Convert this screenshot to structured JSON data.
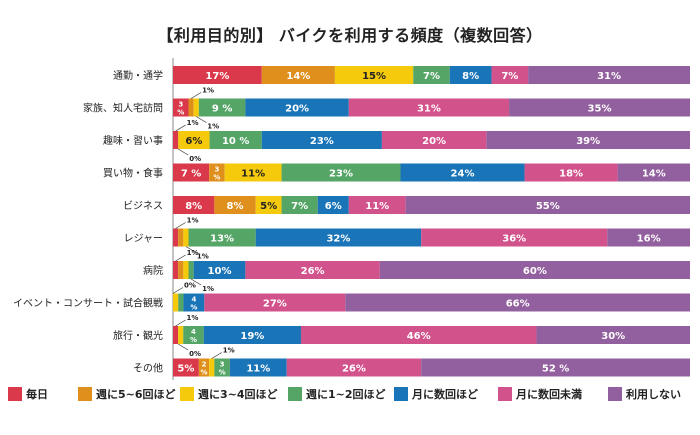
{
  "chart_data": {
    "type": "bar",
    "orientation": "horizontal",
    "stacked": true,
    "title": "【利用目的別】 バイクを利用する頻度（複数回答）",
    "categories": [
      "通勤・通学",
      "家族、知人宅訪問",
      "趣味・習い事",
      "買い物・食事",
      "ビジネス",
      "レジャー",
      "病院",
      "イベント・コンサート・試合観戦",
      "旅行・観光",
      "その他"
    ],
    "series": [
      {
        "name": "毎日",
        "color": "#d9394a",
        "values": [
          17,
          3,
          1,
          7,
          8,
          1,
          1,
          0,
          1,
          5
        ],
        "labels": [
          "17%",
          "3%",
          "1%",
          "7 %",
          "8%",
          "1%",
          "1%",
          "0%",
          "1%",
          "5%"
        ]
      },
      {
        "name": "週に5~6回ほど",
        "color": "#df8f1c",
        "values": [
          14,
          1,
          0,
          3,
          8,
          1,
          1,
          0,
          0,
          2
        ],
        "labels": [
          "14%",
          "1%",
          "0%",
          "3%",
          "8%",
          "",
          "",
          "",
          "0%",
          "2%"
        ]
      },
      {
        "name": "週に3~4回ほど",
        "color": "#f5c90c",
        "values": [
          15,
          1,
          6,
          11,
          5,
          1,
          1,
          1,
          1,
          1
        ],
        "labels": [
          "15%",
          "1%",
          "6%",
          "11%",
          "5%",
          "1%",
          "",
          "",
          "",
          "1%"
        ]
      },
      {
        "name": "週に1~2回ほど",
        "color": "#55a566",
        "values": [
          7,
          9,
          10,
          23,
          7,
          13,
          1,
          1,
          4,
          3
        ],
        "labels": [
          "7%",
          "9 %",
          "10 %",
          "23%",
          "7%",
          "13%",
          "1%",
          "",
          "4%",
          "3%"
        ]
      },
      {
        "name": "月に数回ほど",
        "color": "#1a74b8",
        "values": [
          8,
          20,
          23,
          24,
          6,
          32,
          10,
          4,
          19,
          11
        ],
        "labels": [
          "8%",
          "20%",
          "23%",
          "24%",
          "6%",
          "32%",
          "10%",
          "4%",
          "19%",
          "11%"
        ]
      },
      {
        "name": "月に数回未満",
        "color": "#d2528c",
        "values": [
          7,
          31,
          20,
          18,
          11,
          36,
          26,
          27,
          46,
          26
        ],
        "labels": [
          "7%",
          "31%",
          "20%",
          "18%",
          "11%",
          "36%",
          "26%",
          "27%",
          "46%",
          "26%"
        ]
      },
      {
        "name": "利用しない",
        "color": "#93609f",
        "values": [
          31,
          35,
          39,
          14,
          55,
          16,
          60,
          66,
          30,
          52
        ],
        "labels": [
          "31%",
          "35%",
          "39%",
          "14%",
          "55%",
          "16%",
          "60%",
          "66%",
          "30%",
          "52 %"
        ]
      }
    ],
    "xlim": [
      0,
      100
    ],
    "grid": false,
    "legend": "bottom"
  }
}
